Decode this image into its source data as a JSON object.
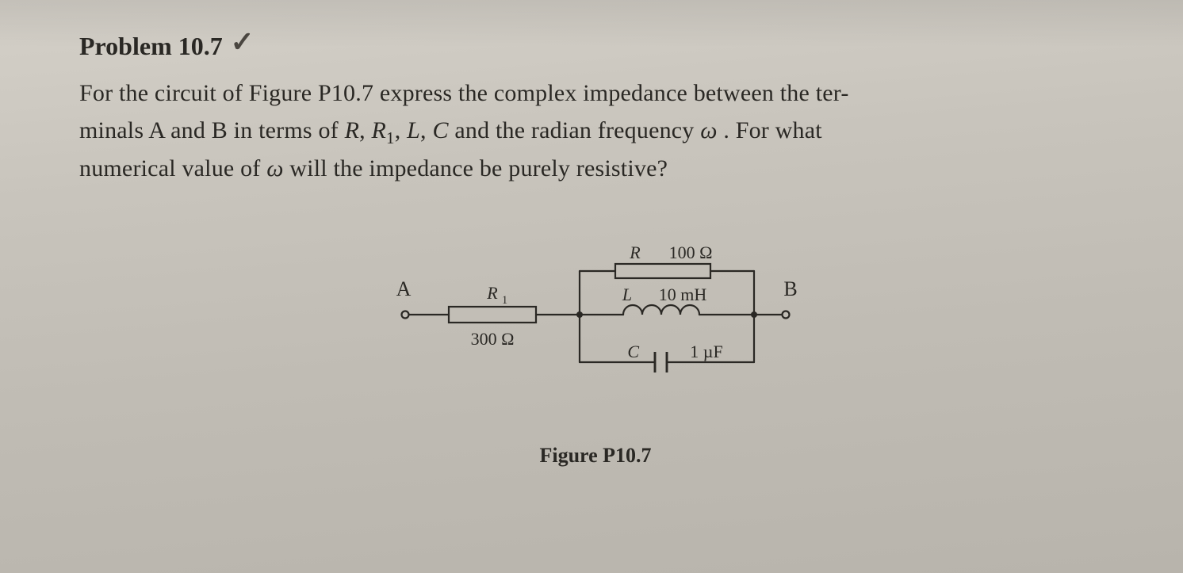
{
  "problem": {
    "number": "Problem 10.7",
    "text_line1": "For the circuit of Figure P10.7 express the complex impedance between the ter-",
    "text_line2_a": "minals A and B in terms of ",
    "text_line2_b": " and the radian frequency ",
    "text_line2_c": ". For what",
    "text_line3_a": "numerical value of ",
    "text_line3_b": " will the impedance be purely resistive?",
    "symbols": {
      "R": "R",
      "R1": "R",
      "R1_sub": "1",
      "L": "L",
      "C": "C",
      "omega": "ω",
      "comma": ", "
    }
  },
  "circuit": {
    "terminals": {
      "A": "A",
      "B": "B"
    },
    "components": {
      "R1": {
        "label": "R",
        "sub": "1",
        "value": "300 Ω"
      },
      "R": {
        "label": "R",
        "value": "100 Ω"
      },
      "L": {
        "label": "L",
        "value": "10 mH"
      },
      "C": {
        "label": "C",
        "value": "1 µF"
      }
    },
    "caption": "Figure P10.7",
    "style": {
      "stroke": "#2a2824",
      "stroke_width": 2.2,
      "font_family": "Georgia, Times New Roman, serif",
      "label_fontsize_pt": 22,
      "terminal_fontsize_pt": 26,
      "node_radius": 4,
      "terminal_radius": 4.5
    }
  }
}
